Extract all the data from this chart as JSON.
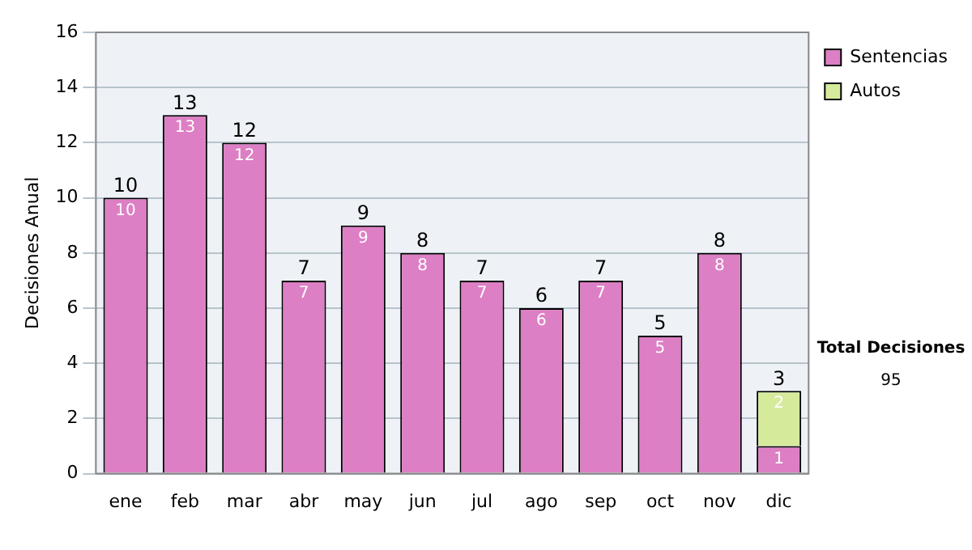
{
  "chart_data": {
    "type": "bar",
    "stacked": true,
    "ylabel": "Decisiones Anual",
    "categories": [
      "ene",
      "feb",
      "mar",
      "abr",
      "may",
      "jun",
      "jul",
      "ago",
      "sep",
      "oct",
      "nov",
      "dic"
    ],
    "series": [
      {
        "name": "Sentencias",
        "color": "#dd7fc4",
        "values": [
          10,
          13,
          12,
          7,
          9,
          8,
          7,
          6,
          7,
          5,
          8,
          1
        ]
      },
      {
        "name": "Autos",
        "color": "#d6ea9c",
        "values": [
          null,
          null,
          null,
          null,
          null,
          null,
          null,
          null,
          null,
          null,
          null,
          2
        ]
      }
    ],
    "ylim": [
      0,
      16
    ],
    "yticks": [
      0,
      2,
      4,
      6,
      8,
      10,
      12,
      14,
      16
    ],
    "grid": "y",
    "legend": "right",
    "data_labels": true,
    "totals": [
      "10",
      "13",
      "12",
      "7",
      "9",
      "8",
      "7",
      "6",
      "7",
      "5",
      "8",
      "3"
    ],
    "annotations": [
      "Total Decisiones",
      "95"
    ]
  }
}
